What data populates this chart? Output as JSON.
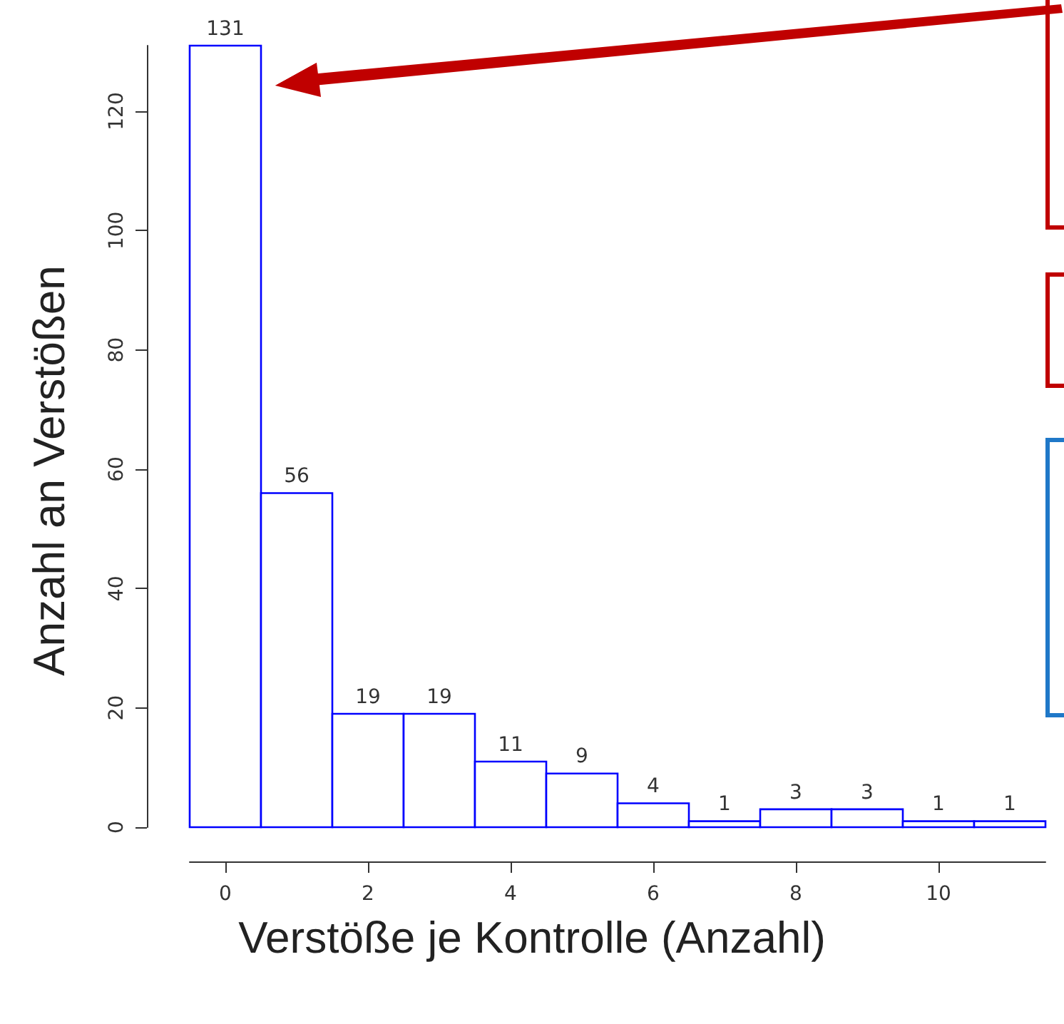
{
  "chart_data": {
    "type": "histogram",
    "xlabel": "Verstöße je Kontrolle (Anzahl)",
    "ylabel": "Anzahl an Verstößen",
    "bins": [
      -0.5,
      0.5,
      1.5,
      2.5,
      3.5,
      4.5,
      5.5,
      6.5,
      7.5,
      8.5,
      9.5,
      10.5,
      11.5
    ],
    "values": [
      131,
      56,
      19,
      19,
      11,
      9,
      4,
      1,
      3,
      3,
      1,
      1
    ],
    "color": "#0000ff",
    "data_labels": true,
    "xlim": [
      -0.5,
      11.5
    ],
    "xticks": [
      0,
      2,
      4,
      6,
      8,
      10
    ],
    "ylim": [
      0,
      131
    ],
    "yticks": [
      0,
      20,
      40,
      60,
      80,
      100,
      120
    ],
    "grid": false
  }
}
